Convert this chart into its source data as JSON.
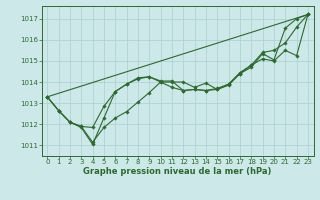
{
  "x": [
    0,
    1,
    2,
    3,
    4,
    5,
    6,
    7,
    8,
    9,
    10,
    11,
    12,
    13,
    14,
    15,
    16,
    17,
    18,
    19,
    20,
    21,
    22,
    23
  ],
  "line1": [
    1013.3,
    1012.65,
    1012.1,
    1011.85,
    1011.05,
    1012.3,
    1013.55,
    1013.9,
    1014.15,
    1014.25,
    1014.0,
    1013.75,
    1013.6,
    1013.65,
    1013.6,
    1013.65,
    1013.9,
    1014.4,
    1014.7,
    1015.35,
    1015.05,
    1016.55,
    1017.0,
    1017.2
  ],
  "line2": [
    1013.3,
    1012.65,
    1012.1,
    1011.9,
    1011.15,
    1011.85,
    1012.3,
    1012.6,
    1013.05,
    1013.5,
    1014.0,
    1014.0,
    1014.0,
    1013.75,
    1013.95,
    1013.65,
    1013.85,
    1014.4,
    1014.8,
    1015.1,
    1015.0,
    1015.5,
    1015.25,
    1017.2
  ],
  "line3": [
    1013.3,
    1012.65,
    1012.1,
    1011.9,
    1011.85,
    1012.85,
    1013.55,
    1013.9,
    1014.2,
    1014.25,
    1014.05,
    1014.05,
    1013.6,
    1013.65,
    1013.6,
    1013.7,
    1013.9,
    1014.45,
    1014.8,
    1015.4,
    1015.5,
    1015.85,
    1016.6,
    1017.2
  ],
  "line4_x": [
    0,
    23
  ],
  "line4_y": [
    1013.3,
    1017.2
  ],
  "bg_color": "#cce8e8",
  "grid_color": "#aacfcf",
  "line_color": "#2d6a2d",
  "xlabel": "Graphe pression niveau de la mer (hPa)",
  "ylim": [
    1010.5,
    1017.6
  ],
  "xlim": [
    -0.5,
    23.5
  ],
  "yticks": [
    1011,
    1012,
    1013,
    1014,
    1015,
    1016,
    1017
  ],
  "xticks": [
    0,
    1,
    2,
    3,
    4,
    5,
    6,
    7,
    8,
    9,
    10,
    11,
    12,
    13,
    14,
    15,
    16,
    17,
    18,
    19,
    20,
    21,
    22,
    23
  ],
  "tick_fontsize": 5.0,
  "xlabel_fontsize": 6.0
}
